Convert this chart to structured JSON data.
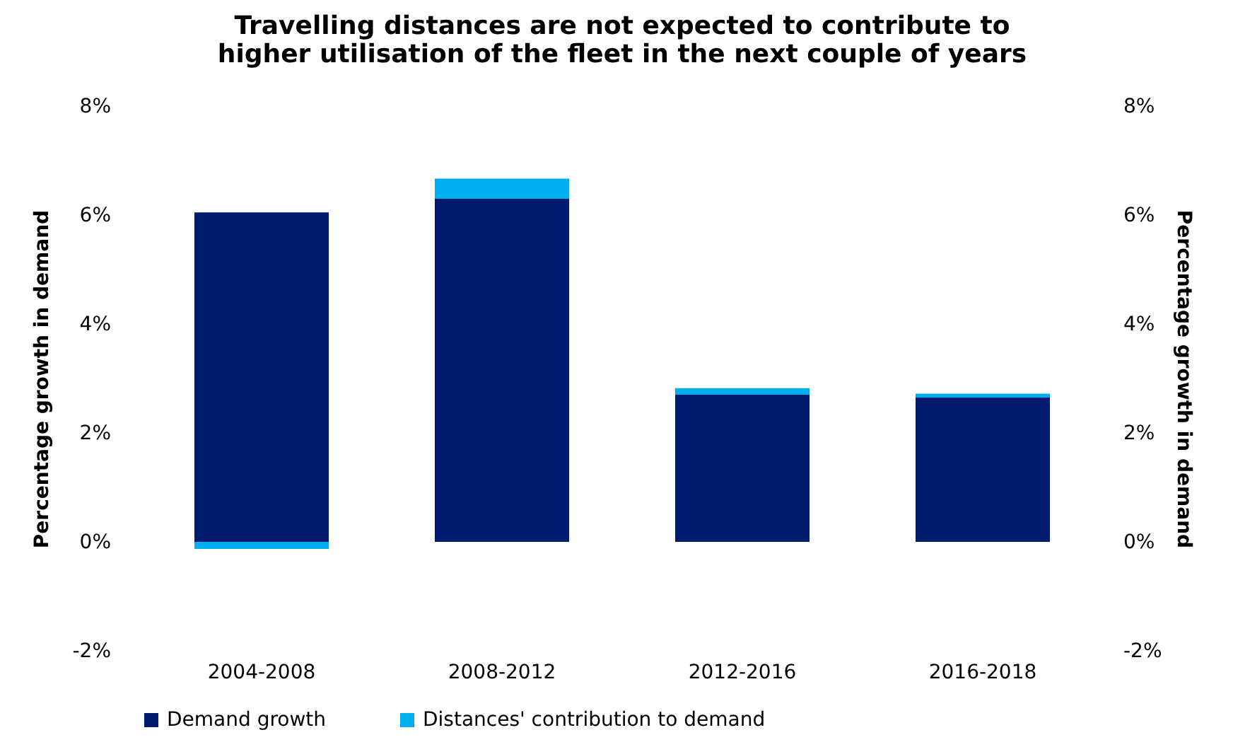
{
  "chart_data": {
    "type": "bar",
    "title": "Travelling distances are not expected to contribute to higher utilisation of the fleet in the next couple of years",
    "ylabel": "Percentage growth in demand",
    "y2label": "Percentage growth in demand",
    "categories": [
      "2004-2008",
      "2008-2012",
      "2012-2016",
      "2016-2018"
    ],
    "stacked": true,
    "series": [
      {
        "name": "Demand growth",
        "color": "#001a6e",
        "values": [
          6.05,
          6.3,
          2.7,
          2.65
        ]
      },
      {
        "name": "Distances' contribution to demand",
        "color": "#00aeef",
        "values": [
          -0.13,
          0.37,
          0.12,
          0.07
        ]
      }
    ],
    "ylim": [
      -2,
      8
    ],
    "yticks": [
      {
        "value": -2,
        "label": "-2%"
      },
      {
        "value": 0,
        "label": "0%"
      },
      {
        "value": 2,
        "label": "2%"
      },
      {
        "value": 4,
        "label": "4%"
      },
      {
        "value": 6,
        "label": "6%"
      },
      {
        "value": 8,
        "label": "8%"
      }
    ],
    "y2lim": [
      -2,
      8
    ],
    "y2ticks": [
      {
        "value": -2,
        "label": "-2%"
      },
      {
        "value": 0,
        "label": "0%"
      },
      {
        "value": 2,
        "label": "2%"
      },
      {
        "value": 4,
        "label": "4%"
      },
      {
        "value": 6,
        "label": "6%"
      },
      {
        "value": 8,
        "label": "8%"
      }
    ],
    "grid": false,
    "legend": "bottom"
  }
}
